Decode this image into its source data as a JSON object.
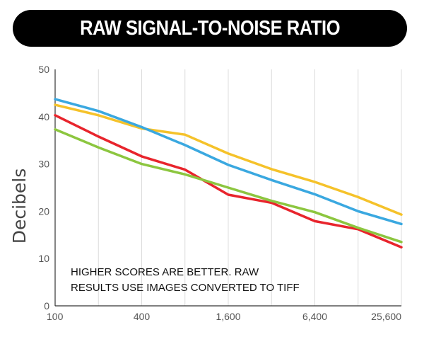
{
  "title": "RAW SIGNAL-TO-NOISE RATIO",
  "chart_data": {
    "type": "line",
    "title": "RAW SIGNAL-TO-NOISE RATIO",
    "xlabel": "",
    "ylabel": "Decibels",
    "ylim": [
      0,
      50
    ],
    "yticks": [
      "0",
      "10",
      "20",
      "30",
      "40",
      "50"
    ],
    "x_scale": "log",
    "xticks": [
      "100",
      "400",
      "1,600",
      "6,400",
      "25,600"
    ],
    "xtick_values": [
      100,
      400,
      1600,
      6400,
      25600
    ],
    "grid": "vertical",
    "annotation": [
      "HIGHER SCORES ARE BETTER. RAW",
      "RESULTS USE IMAGES CONVERTED TO TIFF"
    ],
    "series": [
      {
        "color": "#f5c22a",
        "x": [
          100,
          200,
          400,
          800,
          1600,
          3200,
          6400,
          12800,
          25600
        ],
        "y": [
          42.5,
          40.3,
          37.5,
          36.2,
          32.2,
          28.9,
          26.2,
          23.0,
          19.3
        ]
      },
      {
        "color": "#3aa8e0",
        "x": [
          100,
          200,
          400,
          800,
          1600,
          3200,
          6400,
          12800,
          25600
        ],
        "y": [
          43.7,
          41.2,
          37.8,
          34.0,
          29.8,
          26.6,
          23.6,
          20.0,
          17.3
        ]
      },
      {
        "color": "#e8242c",
        "x": [
          100,
          200,
          400,
          800,
          1600,
          3200,
          6400,
          12800,
          25600
        ],
        "y": [
          40.3,
          35.8,
          31.6,
          28.8,
          23.5,
          21.8,
          17.9,
          16.2,
          12.4
        ]
      },
      {
        "color": "#8cc63f",
        "x": [
          100,
          200,
          400,
          800,
          1600,
          3200,
          6400,
          12800,
          25600
        ],
        "y": [
          37.3,
          33.5,
          30.0,
          27.8,
          25.0,
          22.2,
          19.8,
          16.5,
          13.5
        ]
      }
    ]
  }
}
